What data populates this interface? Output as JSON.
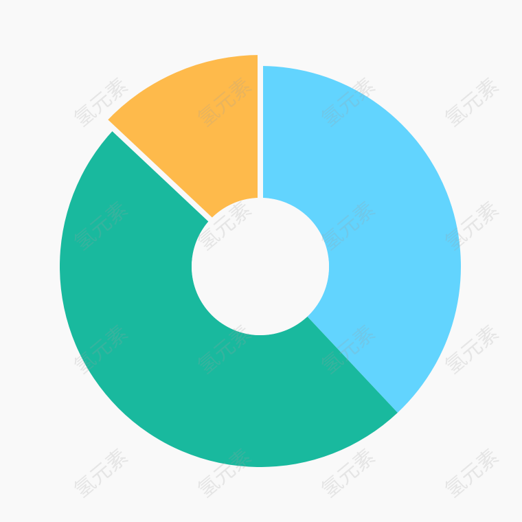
{
  "chart_data": {
    "type": "pie",
    "variant": "donut",
    "values": [
      38,
      49,
      13
    ],
    "colors": [
      "#62d4fe",
      "#19b99e",
      "#feba4b"
    ],
    "exploded_index": 2,
    "legend": "none",
    "title": ""
  },
  "background": "#f9f9f9",
  "watermark": {
    "text": "氢元素"
  }
}
